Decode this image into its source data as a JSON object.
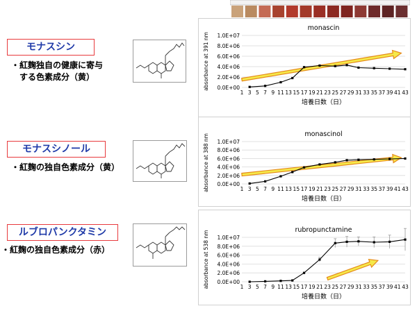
{
  "compounds": [
    {
      "label": "モナスシン",
      "desc_lines": [
        "・紅麹独自の健康に寄与",
        "する色素成分（黄）"
      ]
    },
    {
      "label": "モナスシノール",
      "desc_lines": [
        "・紅麹の独自色素成分（黄）"
      ]
    },
    {
      "label": "ルブロパンクタミン",
      "desc_lines": [
        "・紅麹の独自色素成分（赤）"
      ]
    }
  ],
  "colors": {
    "label_border": "#e8393c",
    "label_text": "#1f3aa8",
    "arrow_fill": "#f5e94a",
    "arrow_stroke": "#e58a1a",
    "line": "#000000"
  },
  "chart_data": [
    {
      "type": "line",
      "title": "monascin",
      "xlabel": "培養日数（日）",
      "ylabel": "absorbance at 391 nm",
      "xticks": [
        1,
        3,
        5,
        7,
        9,
        11,
        13,
        15,
        17,
        19,
        21,
        23,
        25,
        27,
        29,
        31,
        33,
        35,
        37,
        39,
        41,
        43
      ],
      "yticks": [
        "0.0E+00",
        "2.0E+06",
        "4.0E+06",
        "6.0E+06",
        "8.0E+06",
        "1.0E+07"
      ],
      "ylim": [
        0,
        10000000
      ],
      "xlim": [
        1,
        43
      ],
      "grid": "horizontal",
      "series": [
        {
          "x": [
            3,
            7,
            11,
            14,
            17,
            21,
            25,
            28,
            31,
            35,
            39,
            43
          ],
          "y": [
            100000,
            300000,
            1000000,
            1800000,
            3900000,
            4200000,
            4100000,
            4300000,
            3800000,
            3700000,
            3600000,
            3500000
          ],
          "error": [
            0,
            0,
            0,
            0,
            0,
            0,
            0,
            0,
            0,
            0,
            0,
            0
          ]
        }
      ]
    },
    {
      "type": "line",
      "title": "monascinol",
      "xlabel": "培養日数（日）",
      "ylabel": "absorbance at 388 nm",
      "xticks": [
        1,
        3,
        5,
        7,
        9,
        11,
        13,
        15,
        17,
        19,
        21,
        23,
        25,
        27,
        29,
        31,
        33,
        35,
        37,
        39,
        41,
        43
      ],
      "yticks": [
        "0.0E+00",
        "2.0E+06",
        "4.0E+06",
        "6.0E+06",
        "8.0E+06",
        "1.0E+07"
      ],
      "ylim": [
        0,
        10000000
      ],
      "xlim": [
        1,
        43
      ],
      "grid": "horizontal",
      "series": [
        {
          "x": [
            3,
            7,
            11,
            14,
            17,
            21,
            25,
            28,
            31,
            35,
            39,
            43
          ],
          "y": [
            100000,
            600000,
            1800000,
            2800000,
            3900000,
            4600000,
            5100000,
            5600000,
            5700000,
            5800000,
            5900000,
            6000000
          ],
          "error": [
            0,
            0,
            0,
            0,
            0,
            0,
            0,
            0,
            0,
            0,
            0,
            0
          ]
        }
      ]
    },
    {
      "type": "line",
      "title": "rubropunctamine",
      "xlabel": "培養日数（日）",
      "ylabel": "absorbance at 538 nm",
      "xticks": [
        1,
        3,
        5,
        7,
        9,
        11,
        13,
        15,
        17,
        19,
        21,
        23,
        25,
        27,
        29,
        31,
        33,
        35,
        37,
        39,
        41,
        43
      ],
      "yticks": [
        "0.0E+00",
        "2.0E+06",
        "4.0E+06",
        "6.0E+06",
        "8.0E+06",
        "1.0E+07"
      ],
      "ylim": [
        0,
        10000000
      ],
      "xlim": [
        1,
        43
      ],
      "grid": "horizontal",
      "series": [
        {
          "x": [
            3,
            7,
            11,
            14,
            17,
            21,
            25,
            28,
            31,
            35,
            39,
            43
          ],
          "y": [
            0,
            100000,
            200000,
            300000,
            2000000,
            5000000,
            8700000,
            9000000,
            9100000,
            8900000,
            9000000,
            9500000
          ],
          "error": [
            0,
            0,
            0,
            0,
            0,
            500000,
            1000000,
            1200000,
            1000000,
            1200000,
            1500000,
            2500000
          ]
        }
      ]
    }
  ]
}
